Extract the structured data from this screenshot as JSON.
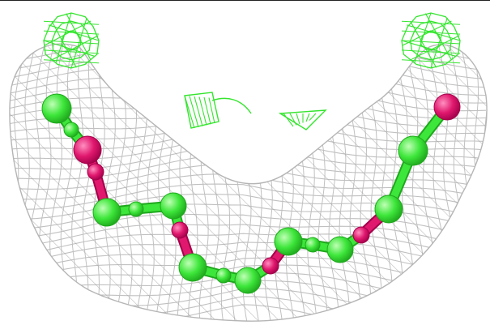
{
  "colors": {
    "background": "#ffffff",
    "mesh": "#c0c0c0",
    "mesh_dark": "#9a9a9a",
    "density_green": "#35e52e",
    "atom_green": "#3de63a",
    "atom_green_dark": "#1fa81d",
    "atom_magenta": "#e0186e",
    "atom_magenta_dark": "#a3004a",
    "frame": "#222222"
  },
  "scene": {
    "type": "molecular-electron-density-view",
    "mesh_style": "wireframe",
    "chain": {
      "atom_sequence": [
        "green",
        "green",
        "magenta",
        "magenta",
        "green",
        "green",
        "green",
        "magenta",
        "green",
        "green",
        "green",
        "magenta",
        "green",
        "green",
        "green",
        "magenta",
        "green",
        "green",
        "magenta"
      ]
    },
    "green_density_blobs": [
      "top-left",
      "top-right",
      "center-left-fragment",
      "center-right-fragment"
    ]
  }
}
